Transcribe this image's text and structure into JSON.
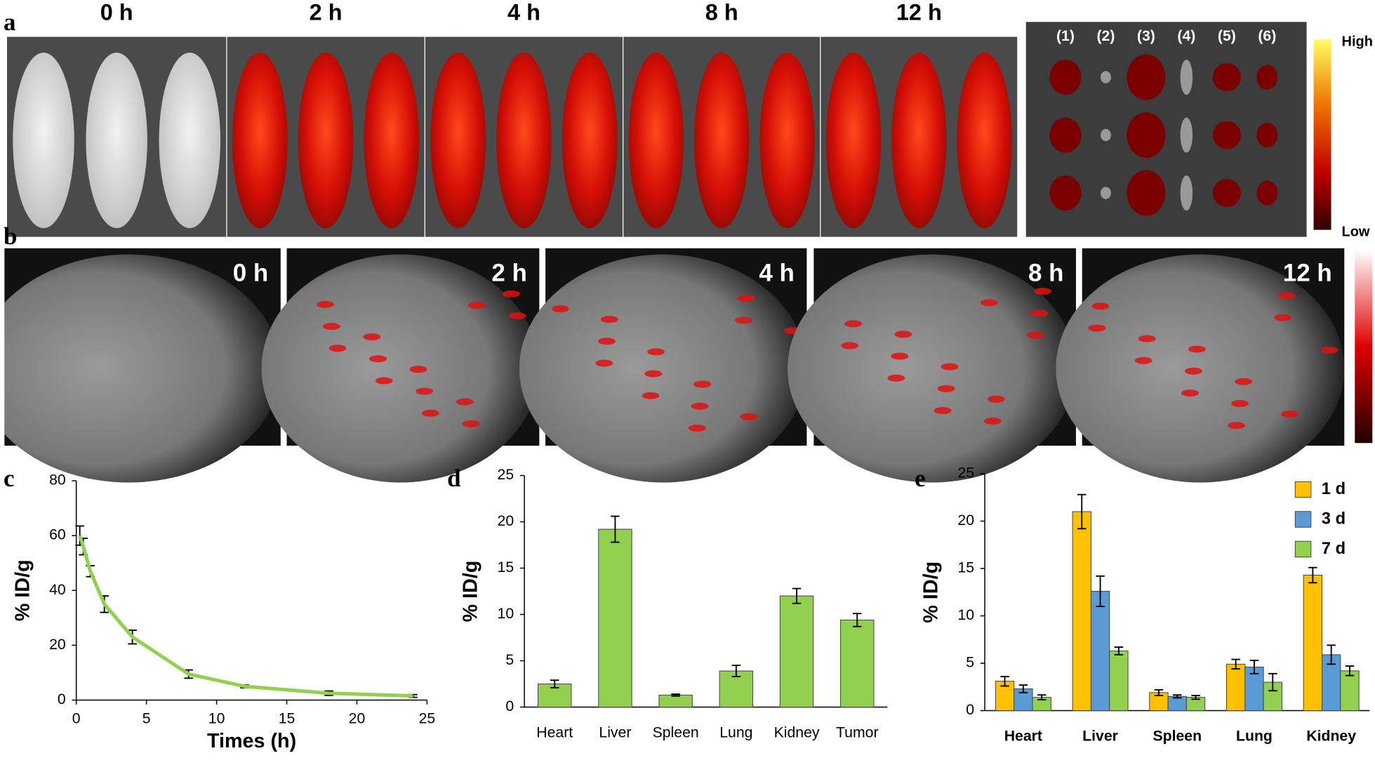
{
  "panels": {
    "a": {
      "letter": "a",
      "times": [
        "0 h",
        "2 h",
        "4 h",
        "8 h",
        "12 h"
      ],
      "organs": [
        "(1)",
        "(2)",
        "(3)",
        "(4)",
        "(5)",
        "(6)"
      ],
      "high": "High",
      "low": "Low"
    },
    "b": {
      "letter": "b",
      "times": [
        "0 h",
        "2 h",
        "4 h",
        "8 h",
        "12 h"
      ]
    },
    "c": {
      "letter": "c"
    },
    "d": {
      "letter": "d"
    },
    "e": {
      "letter": "e"
    }
  },
  "chart_data": [
    {
      "type": "line",
      "x_label": "Times (h)",
      "y_label": "% ID/g",
      "x": [
        0.25,
        0.5,
        1,
        2,
        4,
        8,
        12,
        18,
        24
      ],
      "values": [
        60,
        56,
        47,
        35,
        23,
        9.5,
        5,
        2.5,
        1.5
      ],
      "errors": [
        3.5,
        3,
        2,
        3,
        2.5,
        1.5,
        0.5,
        0.8,
        0.5
      ],
      "color": "#92d050",
      "xlim": [
        0,
        25
      ],
      "xticks": [
        0,
        5,
        10,
        15,
        20,
        25
      ],
      "ylim": [
        0,
        80
      ],
      "yticks": [
        0,
        20,
        40,
        60,
        80
      ]
    },
    {
      "type": "bar",
      "y_label": "% ID/g",
      "categories": [
        "Heart",
        "Liver",
        "Spleen",
        "Lung",
        "Kidney",
        "Tumor"
      ],
      "values": [
        2.5,
        19.2,
        1.3,
        3.9,
        12,
        9.4
      ],
      "errors": [
        0.4,
        1.4,
        0.1,
        0.6,
        0.8,
        0.7
      ],
      "color": "#92d050",
      "ylim": [
        0,
        25
      ],
      "yticks": [
        0,
        5,
        10,
        15,
        20,
        25
      ]
    },
    {
      "type": "bar",
      "y_label": "% ID/g",
      "legend": "top-right",
      "categories": [
        "Heart",
        "Liver",
        "Spleen",
        "Lung",
        "Kidney"
      ],
      "series": [
        {
          "name": "1 d",
          "color": "#ffc000",
          "values": [
            3.1,
            21,
            1.9,
            4.9,
            14.3
          ],
          "errors": [
            0.5,
            1.8,
            0.3,
            0.5,
            0.8
          ]
        },
        {
          "name": "3 d",
          "color": "#5b9bd5",
          "values": [
            2.3,
            12.6,
            1.5,
            4.6,
            5.9
          ],
          "errors": [
            0.4,
            1.6,
            0.15,
            0.7,
            1.0
          ]
        },
        {
          "name": "7 d",
          "color": "#92d050",
          "values": [
            1.4,
            6.3,
            1.4,
            3,
            4.2
          ],
          "errors": [
            0.25,
            0.4,
            0.2,
            0.9,
            0.5
          ]
        }
      ],
      "ylim": [
        0,
        25
      ],
      "yticks": [
        0,
        5,
        10,
        15,
        20,
        25
      ]
    }
  ]
}
